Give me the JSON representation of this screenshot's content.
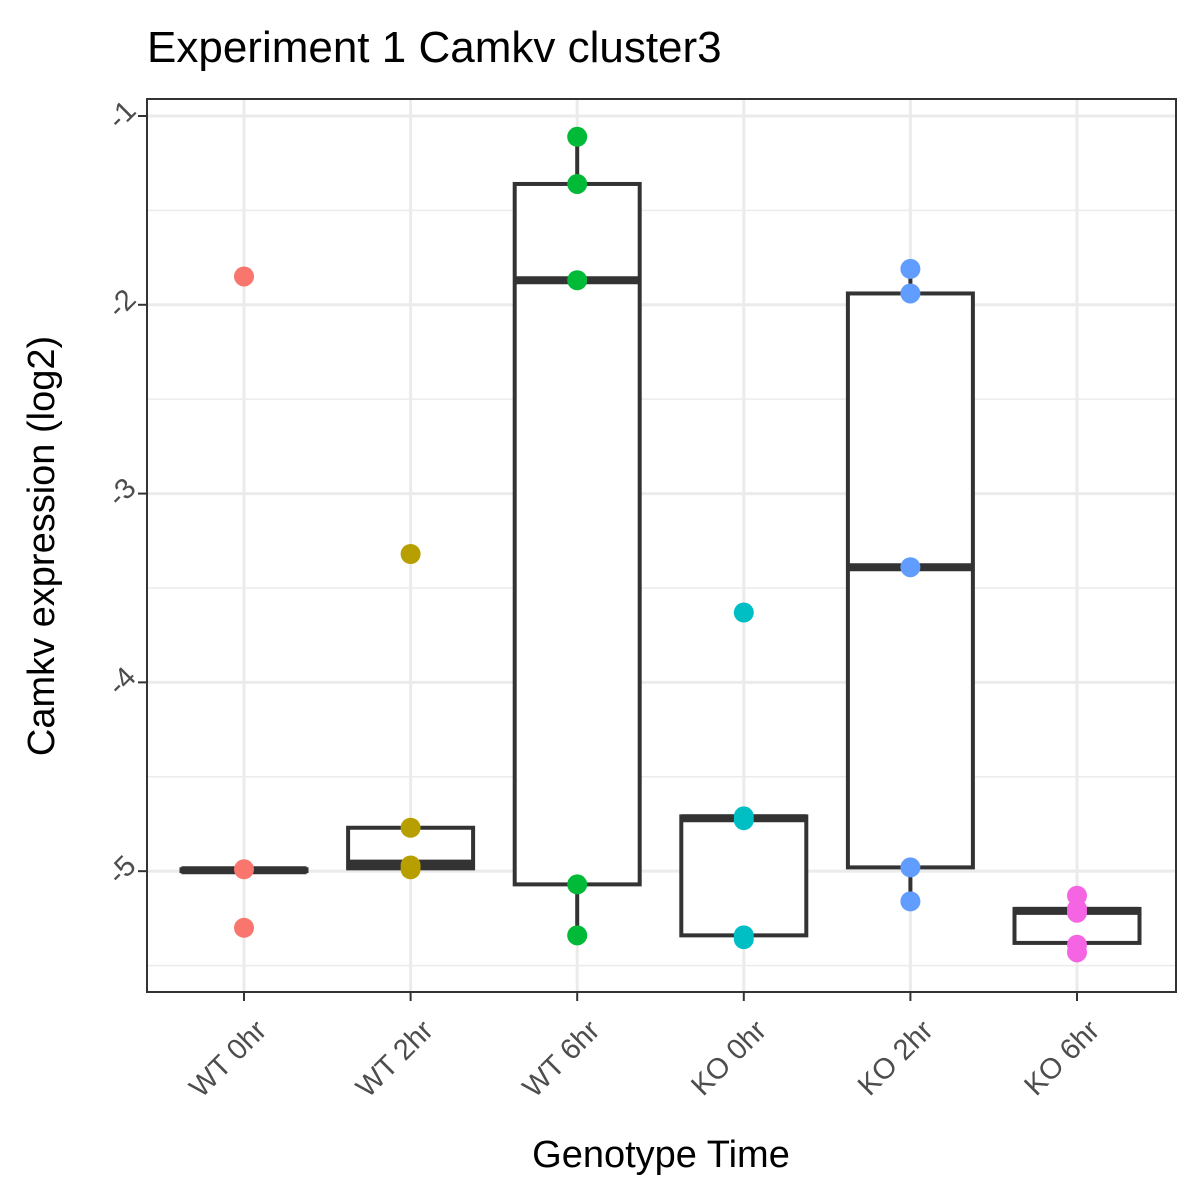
{
  "chart_data": {
    "type": "box",
    "title": "Experiment 1 Camkv cluster3",
    "xlabel": "Genotype Time",
    "ylabel": "Camkv expression (log2)",
    "categories": [
      "WT 0hr",
      "WT 2hr",
      "WT 6hr",
      "KO 0hr",
      "KO 2hr",
      "KO 6hr"
    ],
    "yticks": [
      -1,
      -2,
      -3,
      -4,
      -5
    ],
    "ytick_labels": [
      "-1",
      "-2",
      "-3",
      "-4",
      "-5"
    ],
    "ylim": [
      -5.64,
      -0.91
    ],
    "grid": true,
    "legend": "none",
    "series": [
      {
        "category": "WT 0hr",
        "color": "#F8766D",
        "points": [
          -1.85,
          -4.99,
          -5.3
        ],
        "box": {
          "q1": -5.0,
          "median": -4.995,
          "q3": -4.99,
          "whisker_low": -5.0,
          "whisker_high": -4.99
        }
      },
      {
        "category": "WT 2hr",
        "color": "#B79F00",
        "points": [
          -3.32,
          -4.77,
          -4.97,
          -4.99
        ],
        "box": {
          "q1": -4.985,
          "median": -4.96,
          "q3": -4.77,
          "whisker_low": -4.99,
          "whisker_high": -4.77
        }
      },
      {
        "category": "WT 6hr",
        "color": "#00BA38",
        "points": [
          -1.11,
          -1.36,
          -1.87,
          -5.07,
          -5.34
        ],
        "box": {
          "q1": -5.07,
          "median": -1.87,
          "q3": -1.36,
          "whisker_low": -5.34,
          "whisker_high": -1.11
        }
      },
      {
        "category": "KO 0hr",
        "color": "#00BFC4",
        "points": [
          -3.63,
          -4.71,
          -4.73,
          -5.34,
          -5.36
        ],
        "box": {
          "q1": -5.34,
          "median": -4.72,
          "q3": -4.71,
          "whisker_low": -5.36,
          "whisker_high": -4.71
        }
      },
      {
        "category": "KO 2hr",
        "color": "#619CFF",
        "points": [
          -1.81,
          -1.94,
          -3.39,
          -4.98,
          -5.16
        ],
        "box": {
          "q1": -4.98,
          "median": -3.39,
          "q3": -1.94,
          "whisker_low": -5.16,
          "whisker_high": -1.81
        }
      },
      {
        "category": "KO 6hr",
        "color": "#F564E3",
        "points": [
          -5.13,
          -5.2,
          -5.22,
          -5.39,
          -5.43
        ],
        "box": {
          "q1": -5.38,
          "median": -5.21,
          "q3": -5.2,
          "whisker_low": -5.43,
          "whisker_high": -5.13
        }
      }
    ]
  }
}
